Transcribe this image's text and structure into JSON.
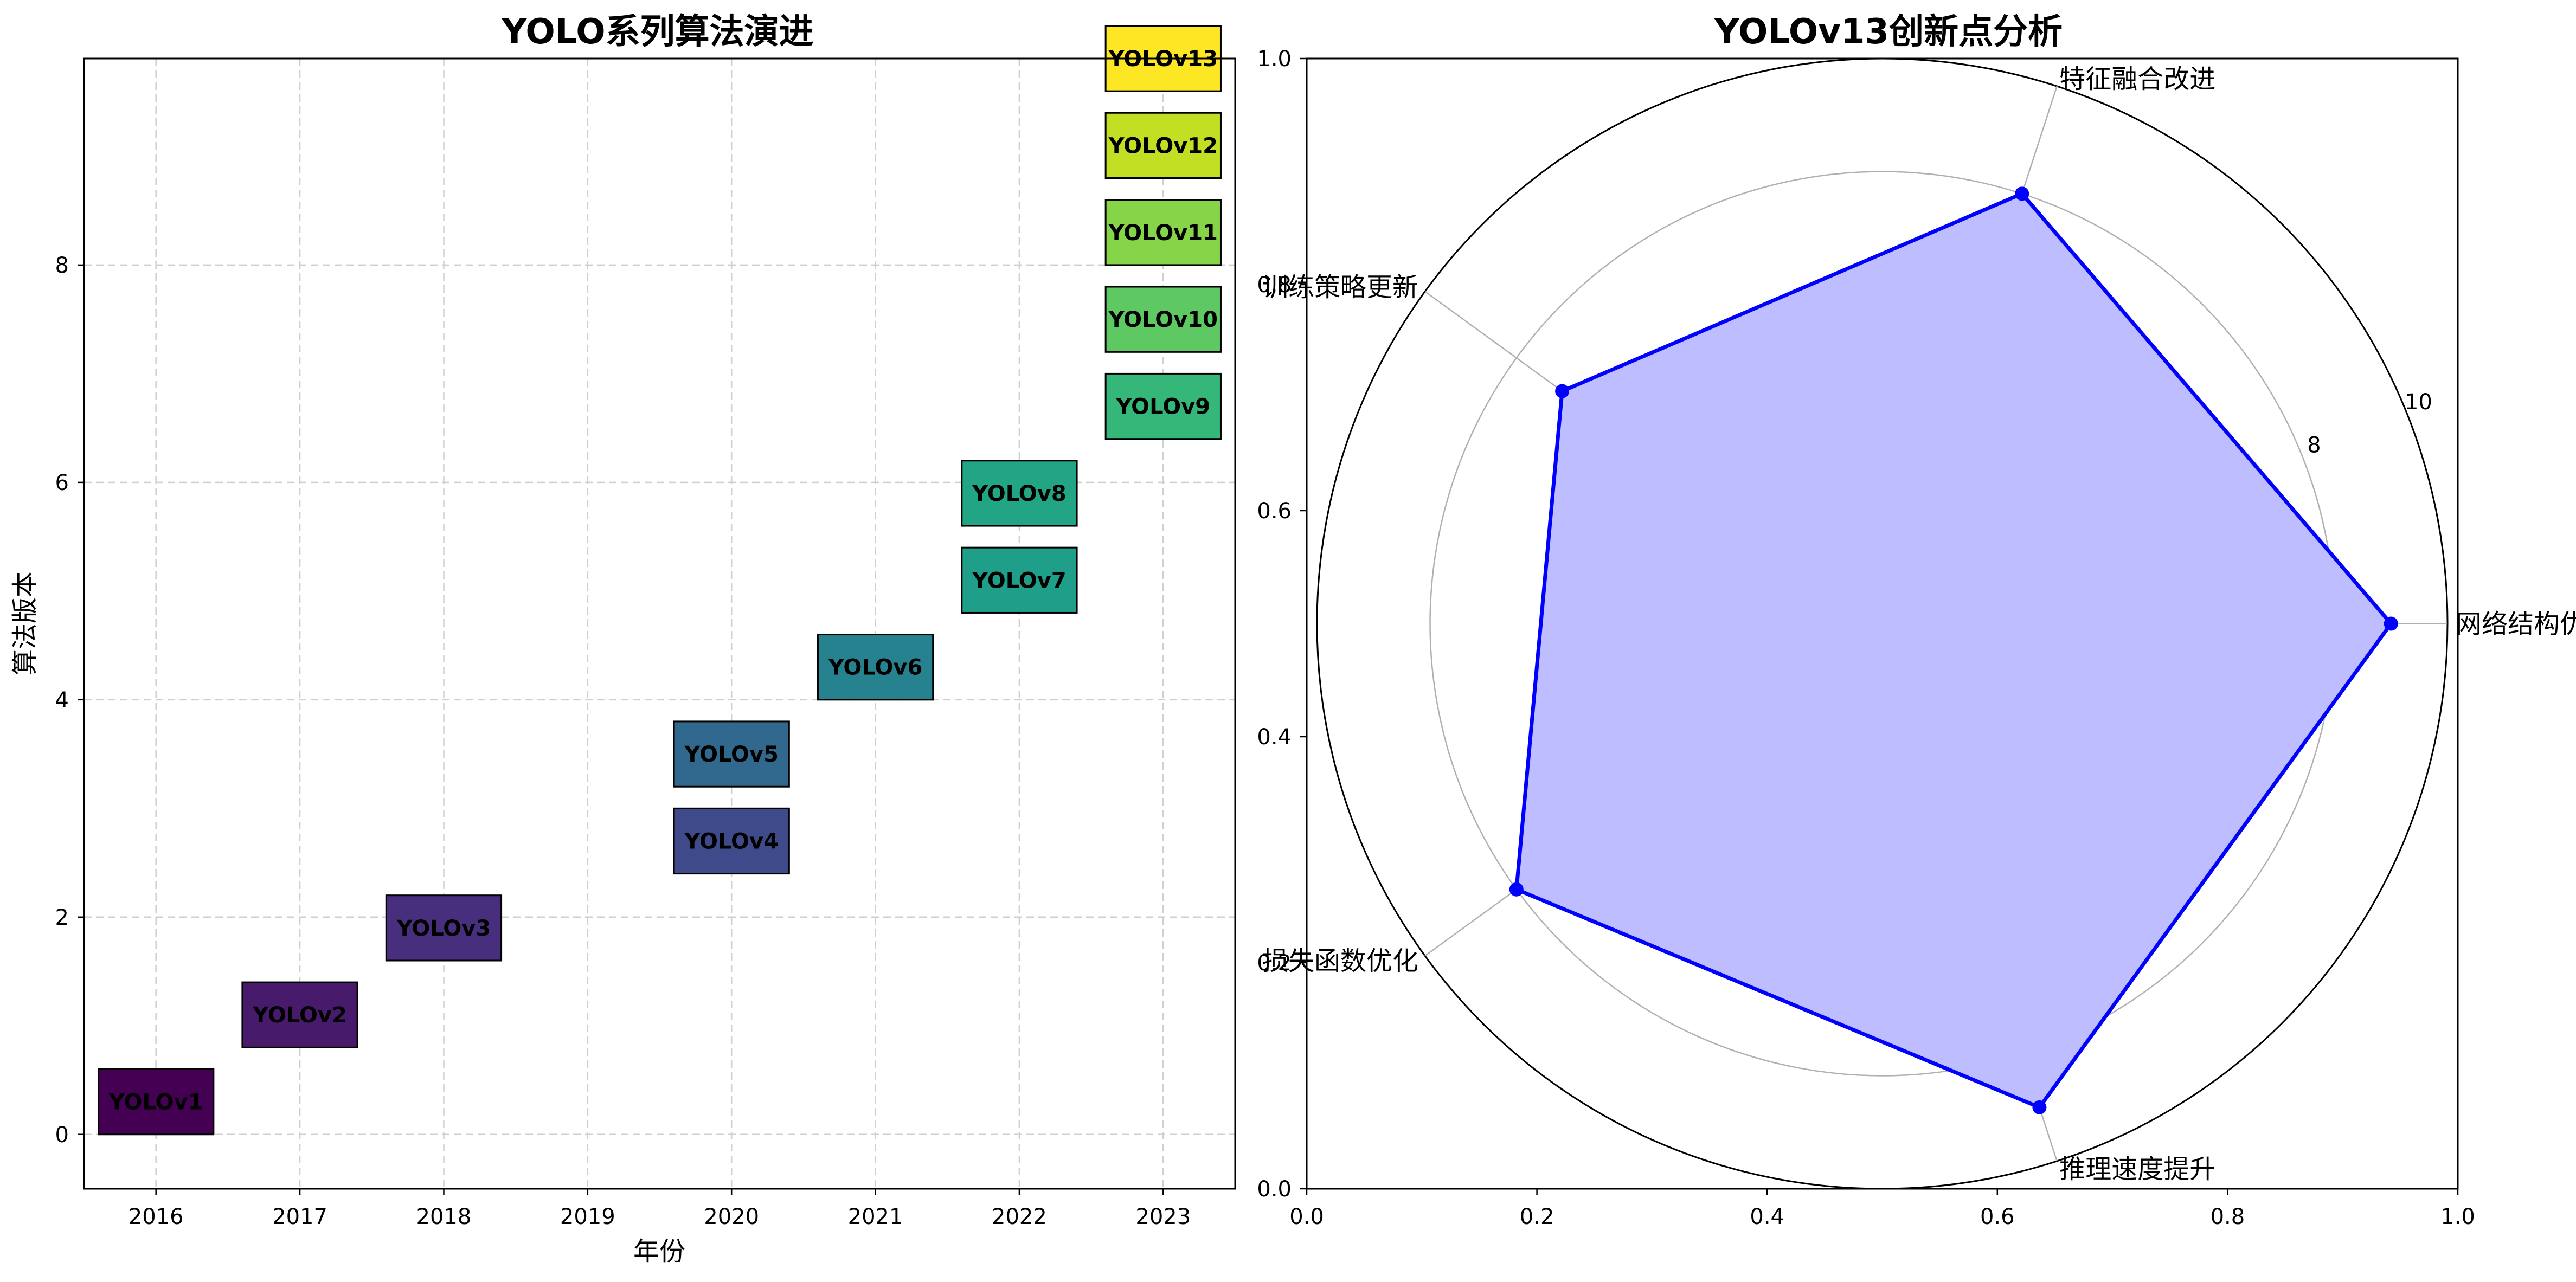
{
  "chart_data": [
    {
      "type": "timeline",
      "title": "YOLO系列算法演进",
      "xlabel": "年份",
      "ylabel": "算法版本",
      "xlim": [
        2015.5,
        2023.5
      ],
      "ylim": [
        -0.5,
        9.9
      ],
      "xticks": [
        "2016",
        "2017",
        "2018",
        "2019",
        "2020",
        "2021",
        "2022",
        "2023"
      ],
      "yticks": [
        "0",
        "2",
        "4",
        "6",
        "8"
      ],
      "grid": true,
      "items": [
        {
          "label": "YOLOv1",
          "year": 2016,
          "y": 0.3,
          "color": "#440154"
        },
        {
          "label": "YOLOv2",
          "year": 2017,
          "y": 1.1,
          "color": "#481a6c"
        },
        {
          "label": "YOLOv3",
          "year": 2018,
          "y": 1.9,
          "color": "#472f7d"
        },
        {
          "label": "YOLOv4",
          "year": 2020,
          "y": 2.7,
          "color": "#3e4a89"
        },
        {
          "label": "YOLOv5",
          "year": 2020,
          "y": 3.5,
          "color": "#31688e"
        },
        {
          "label": "YOLOv6",
          "year": 2021,
          "y": 4.3,
          "color": "#26828e"
        },
        {
          "label": "YOLOv7",
          "year": 2022,
          "y": 5.1,
          "color": "#1f9e89"
        },
        {
          "label": "YOLOv8",
          "year": 2022,
          "y": 5.9,
          "color": "#21a585"
        },
        {
          "label": "YOLOv9",
          "year": 2023,
          "y": 6.7,
          "color": "#35b779"
        },
        {
          "label": "YOLOv10",
          "year": 2023,
          "y": 7.5,
          "color": "#5ec962"
        },
        {
          "label": "YOLOv11",
          "year": 2023,
          "y": 8.3,
          "color": "#86d549"
        },
        {
          "label": "YOLOv12",
          "year": 2023,
          "y": 9.1,
          "color": "#c2df23"
        },
        {
          "label": "YOLOv13",
          "year": 2023,
          "y": 9.9,
          "color": "#fde725"
        }
      ]
    },
    {
      "type": "radar",
      "title": "YOLOv13创新点分析",
      "categories": [
        "网络结构优化",
        "特征融合改进",
        "训练策略更新",
        "损失函数优化",
        "推理速度提升"
      ],
      "values": [
        9,
        8,
        7,
        8,
        9
      ],
      "rmax": 10,
      "rticks": [
        "2",
        "4",
        "6",
        "8",
        "10"
      ],
      "line_color": "#0000ff",
      "fill_color": "#bdbdff",
      "frame_xticks": [
        "0.0",
        "0.2",
        "0.4",
        "0.6",
        "0.8",
        "1.0"
      ],
      "frame_yticks": [
        "0.0",
        "0.2",
        "0.4",
        "0.6",
        "0.8",
        "1.0"
      ]
    }
  ]
}
